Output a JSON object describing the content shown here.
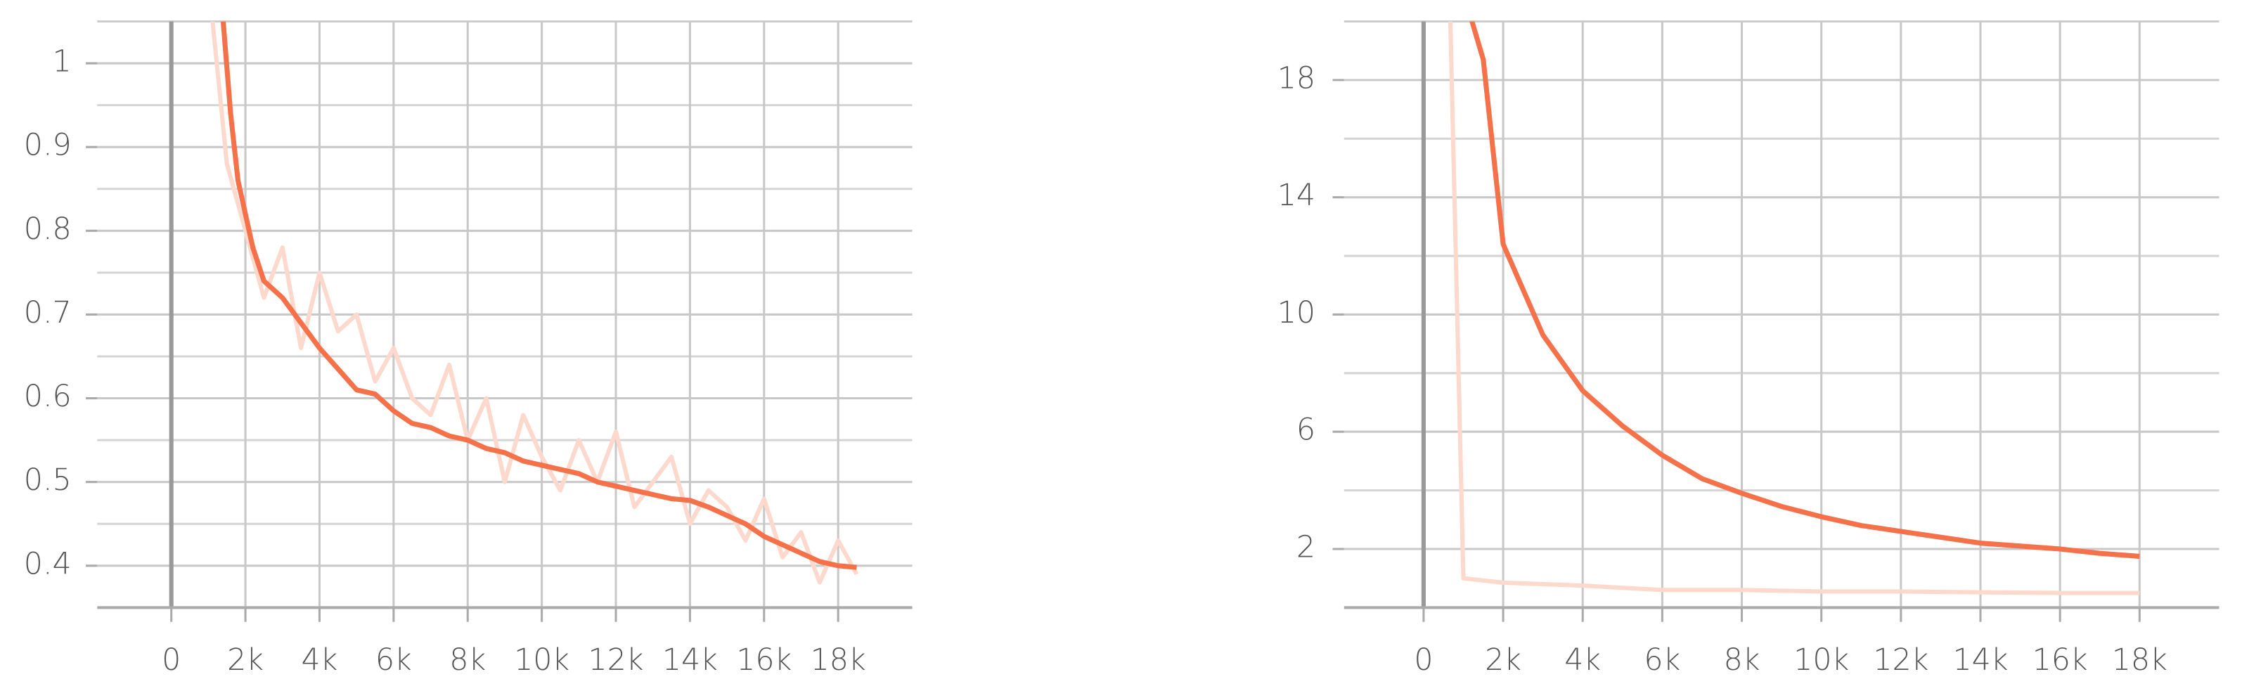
{
  "chart_data": [
    {
      "type": "line",
      "xlim": [
        -2000,
        20000
      ],
      "ylim": [
        0.35,
        1.05
      ],
      "xticks": [
        0,
        {
          "value": 2000,
          "label": "2k"
        },
        {
          "value": 4000,
          "label": "4k"
        },
        {
          "value": 6000,
          "label": "6k"
        },
        {
          "value": 8000,
          "label": "8k"
        },
        {
          "value": 10000,
          "label": "10k"
        },
        {
          "value": 12000,
          "label": "12k"
        },
        {
          "value": 14000,
          "label": "14k"
        },
        {
          "value": 16000,
          "label": "16k"
        },
        {
          "value": 18000,
          "label": "18k"
        }
      ],
      "yticks": [
        0.4,
        0.5,
        0.6,
        0.7,
        0.8,
        0.9,
        1
      ],
      "minor_yticks": [
        0.45,
        0.55,
        0.65,
        0.75,
        0.85,
        0.95
      ],
      "grid": true,
      "series": [
        {
          "color": "#fcd9cc",
          "x": [
            1000,
            1500,
            2000,
            2500,
            3000,
            3500,
            4000,
            4500,
            5000,
            5500,
            6000,
            6500,
            7000,
            7500,
            8000,
            8500,
            9000,
            9500,
            10000,
            10500,
            11000,
            11500,
            12000,
            12500,
            13000,
            13500,
            14000,
            14500,
            15000,
            15500,
            16000,
            16500,
            17000,
            17500,
            18000,
            18500
          ],
          "values": [
            1.1,
            0.88,
            0.8,
            0.72,
            0.78,
            0.66,
            0.75,
            0.68,
            0.7,
            0.62,
            0.66,
            0.6,
            0.58,
            0.64,
            0.55,
            0.6,
            0.5,
            0.58,
            0.53,
            0.49,
            0.55,
            0.5,
            0.56,
            0.47,
            0.5,
            0.53,
            0.45,
            0.49,
            0.47,
            0.43,
            0.48,
            0.41,
            0.44,
            0.38,
            0.43,
            0.39
          ]
        },
        {
          "color": "#f5714a",
          "x": [
            1400,
            1600,
            1800,
            2000,
            2200,
            2500,
            3000,
            3500,
            4000,
            4500,
            5000,
            5500,
            6000,
            6500,
            7000,
            7500,
            8000,
            8500,
            9000,
            9500,
            10000,
            10500,
            11000,
            11500,
            12000,
            12500,
            13000,
            13500,
            14000,
            14500,
            15000,
            15500,
            16000,
            16500,
            17000,
            17500,
            18000,
            18500
          ],
          "values": [
            1.05,
            0.94,
            0.86,
            0.82,
            0.78,
            0.74,
            0.72,
            0.69,
            0.66,
            0.635,
            0.61,
            0.605,
            0.585,
            0.57,
            0.565,
            0.555,
            0.55,
            0.54,
            0.535,
            0.525,
            0.52,
            0.515,
            0.51,
            0.5,
            0.495,
            0.49,
            0.485,
            0.48,
            0.478,
            0.47,
            0.46,
            0.45,
            0.435,
            0.425,
            0.415,
            0.405,
            0.4,
            0.398
          ]
        }
      ]
    },
    {
      "type": "line",
      "xlim": [
        -2000,
        20000
      ],
      "ylim": [
        0,
        20
      ],
      "xticks": [
        0,
        {
          "value": 2000,
          "label": "2k"
        },
        {
          "value": 4000,
          "label": "4k"
        },
        {
          "value": 6000,
          "label": "6k"
        },
        {
          "value": 8000,
          "label": "8k"
        },
        {
          "value": 10000,
          "label": "10k"
        },
        {
          "value": 12000,
          "label": "12k"
        },
        {
          "value": 14000,
          "label": "14k"
        },
        {
          "value": 16000,
          "label": "16k"
        },
        {
          "value": 18000,
          "label": "18k"
        }
      ],
      "yticks": [
        2,
        6,
        10,
        14,
        18
      ],
      "minor_yticks": [
        4,
        8,
        12,
        16
      ],
      "grid": true,
      "series": [
        {
          "color": "#fcd9cc",
          "x": [
            500,
            1000,
            2000,
            4000,
            6000,
            8000,
            10000,
            12000,
            14000,
            16000,
            18000
          ],
          "values": [
            30,
            1.0,
            0.85,
            0.75,
            0.6,
            0.6,
            0.55,
            0.55,
            0.52,
            0.5,
            0.5
          ]
        },
        {
          "color": "#f5714a",
          "x": [
            1000,
            1500,
            2000,
            3000,
            4000,
            5000,
            6000,
            7000,
            8000,
            9000,
            10000,
            11000,
            12000,
            13000,
            14000,
            15000,
            16000,
            17000,
            18000
          ],
          "values": [
            21,
            18.7,
            12.4,
            9.3,
            7.4,
            6.2,
            5.2,
            4.4,
            3.9,
            3.45,
            3.1,
            2.8,
            2.6,
            2.4,
            2.2,
            2.1,
            2.0,
            1.85,
            1.75
          ]
        }
      ]
    }
  ]
}
